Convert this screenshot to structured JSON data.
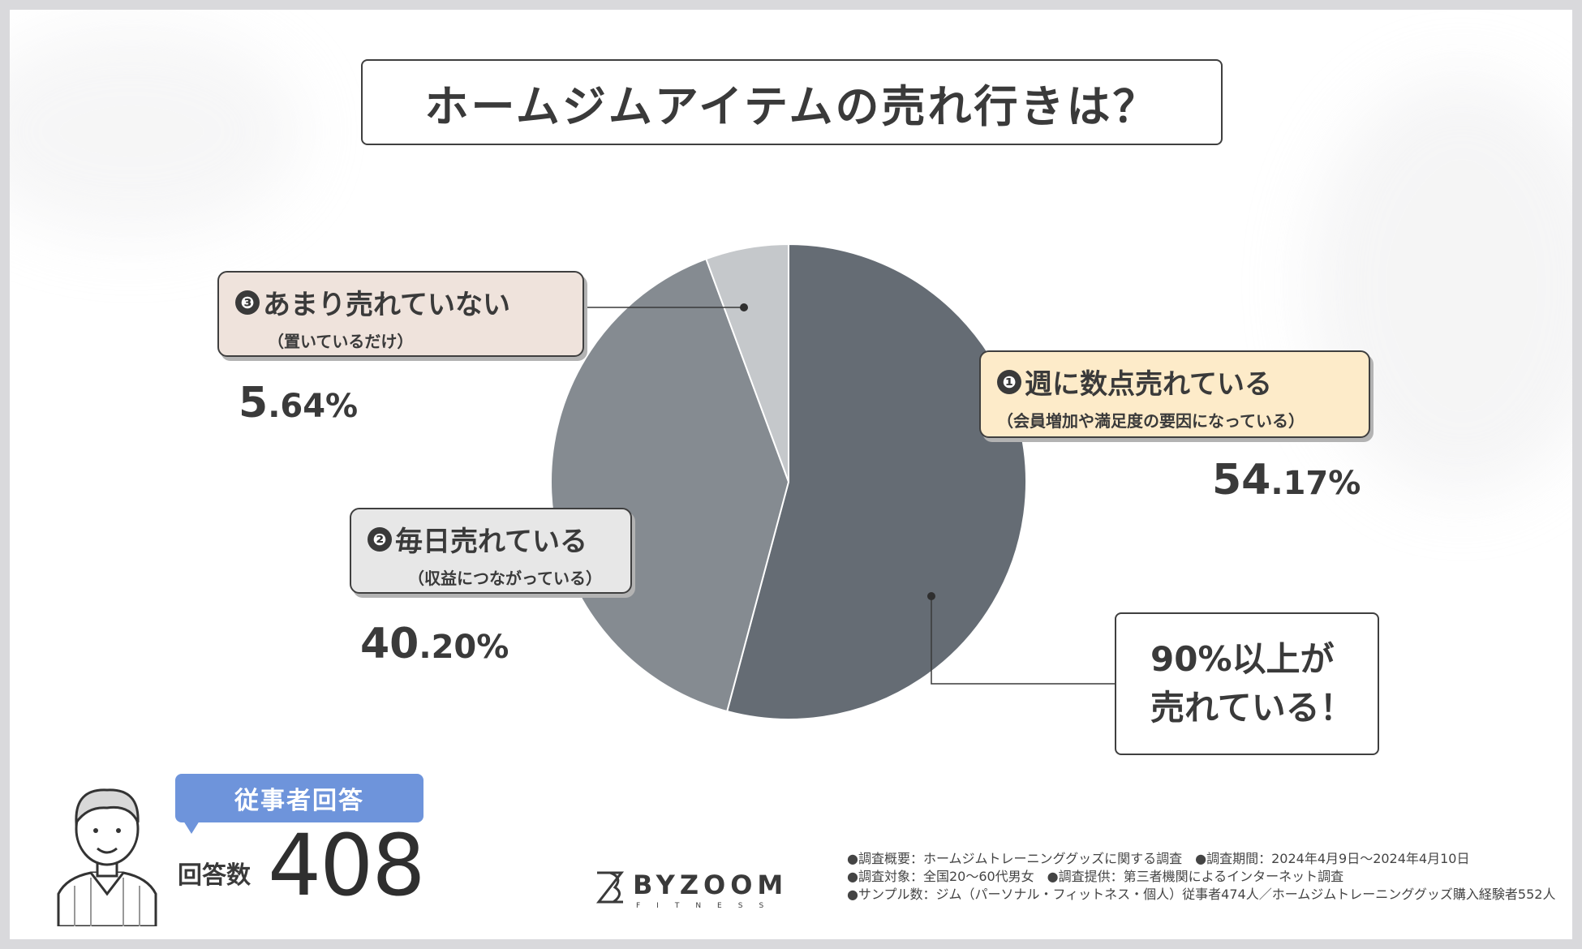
{
  "title": "ホームジムアイテムの売れ行きは？",
  "chart_data": {
    "type": "pie",
    "title": "ホームジムアイテムの売れ行きは？",
    "slices": [
      {
        "marker": "❶",
        "label": "週に数点売れている",
        "note": "（会員増加や満足度の要因になっている）",
        "value": 54.17,
        "pct_int": "54",
        "pct_dec": ".17%",
        "color": "#656c74",
        "box_bg": "#fdebc9"
      },
      {
        "marker": "❷",
        "label": "毎日売れている",
        "note": "（収益につながっている）",
        "value": 40.2,
        "pct_int": "40",
        "pct_dec": ".20%",
        "color": "#858b91",
        "box_bg": "#e7e7e7"
      },
      {
        "marker": "❸",
        "label": "あまり売れていない",
        "note": "（置いているだけ）",
        "value": 5.64,
        "pct_int": "5",
        "pct_dec": ".64%",
        "color": "#c5c8cb",
        "box_bg": "#efe3dc"
      }
    ]
  },
  "callout": {
    "line1": "90%以上が",
    "line2": "売れている！"
  },
  "respondents": {
    "badge": "従事者回答",
    "label": "回答数",
    "count": "408"
  },
  "logo": {
    "name": "BYZOOM",
    "sub": "FITNESS"
  },
  "notes": [
    "●調査概要：ホームジムトレーニンググッズに関する調査　●調査期間：2024年4月9日～2024年4月10日",
    "●調査対象：全国20～60代男女　●調査提供：第三者機関によるインターネット調査",
    "●サンプル数：ジム（パーソナル・フィットネス・個人）従事者474人／ホームジムトレーニンググッズ購入経験者552人"
  ]
}
